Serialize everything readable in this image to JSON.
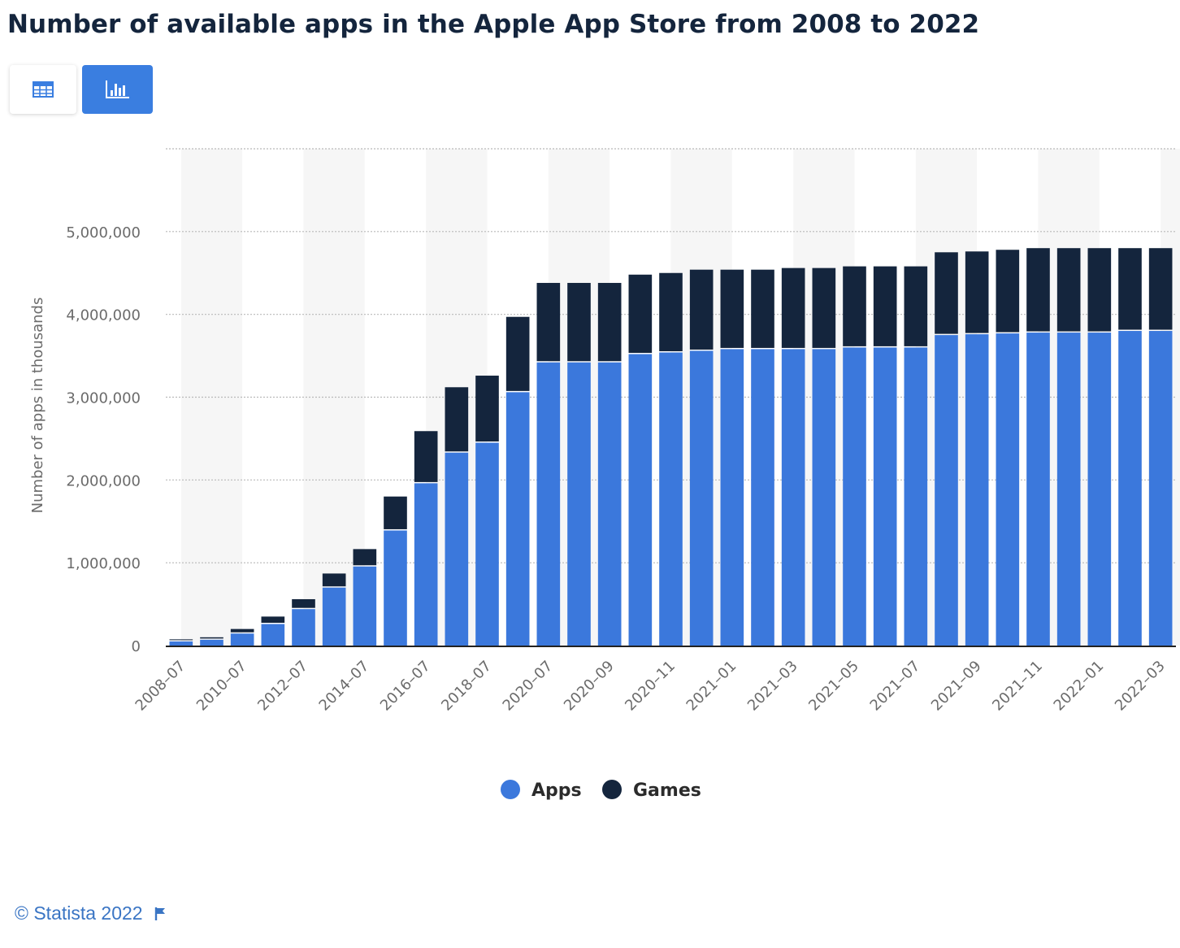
{
  "page": {
    "title": "Number of available apps in the Apple App Store from 2008 to 2022",
    "footer_text": "© Statista 2022",
    "view_buttons": [
      {
        "name": "table-view",
        "icon": "table-icon",
        "active": false
      },
      {
        "name": "chart-view",
        "icon": "bar-chart-icon",
        "active": true
      }
    ]
  },
  "colors": {
    "apps": "#3b78dc",
    "games": "#14253d",
    "accent": "#3a7ee0",
    "footer": "#3a75c4"
  },
  "chart_data": {
    "type": "bar",
    "stacked": true,
    "title": "Number of available apps in the Apple App Store from 2008 to 2022",
    "xlabel": "",
    "ylabel": "Number of apps in thousands",
    "ylim": [
      0,
      6000000
    ],
    "yticks": [
      0,
      1000000,
      2000000,
      3000000,
      4000000,
      5000000
    ],
    "ytick_labels": [
      "0",
      "1,000,000",
      "2,000,000",
      "3,000,000",
      "4,000,000",
      "5,000,000"
    ],
    "grid": true,
    "legend_position": "bottom-center",
    "categories": [
      "2008-07",
      "2009-07",
      "2010-07",
      "2011-07",
      "2012-07",
      "2013-07",
      "2014-07",
      "2015-07",
      "2016-07",
      "2017-07",
      "2018-07",
      "2019-07",
      "2020-07",
      "2020-08",
      "2020-09",
      "2020-10",
      "2020-11",
      "2020-12",
      "2021-01",
      "2021-02",
      "2021-03",
      "2021-04",
      "2021-05",
      "2021-06",
      "2021-07",
      "2021-08",
      "2021-09",
      "2021-10",
      "2021-11",
      "2021-12",
      "2022-01",
      "2022-02",
      "2022-03"
    ],
    "xtick_labels": [
      "2008–07",
      "",
      "2010–07",
      "",
      "2012–07",
      "",
      "2014–07",
      "",
      "2016–07",
      "",
      "2018–07",
      "",
      "2020–07",
      "",
      "2020–09",
      "",
      "2020–11",
      "",
      "2021–01",
      "",
      "2021–03",
      "",
      "2021–05",
      "",
      "2021–07",
      "",
      "2021–09",
      "",
      "2021–11",
      "",
      "2022–01",
      "",
      "2022–03"
    ],
    "series": [
      {
        "name": "Apps",
        "values": [
          50000,
          70000,
          145000,
          260000,
          440000,
          700000,
          955000,
          1390000,
          1960000,
          2330000,
          2450000,
          3060000,
          3420000,
          3420000,
          3420000,
          3520000,
          3540000,
          3560000,
          3580000,
          3580000,
          3580000,
          3580000,
          3600000,
          3600000,
          3600000,
          3750000,
          3760000,
          3770000,
          3780000,
          3780000,
          3780000,
          3800000,
          3800000
        ]
      },
      {
        "name": "Games",
        "values": [
          25000,
          30000,
          55000,
          90000,
          120000,
          170000,
          210000,
          410000,
          630000,
          790000,
          810000,
          910000,
          960000,
          960000,
          960000,
          960000,
          960000,
          980000,
          960000,
          960000,
          980000,
          980000,
          980000,
          980000,
          980000,
          1000000,
          1000000,
          1010000,
          1020000,
          1020000,
          1020000,
          1000000,
          1000000
        ]
      }
    ]
  }
}
